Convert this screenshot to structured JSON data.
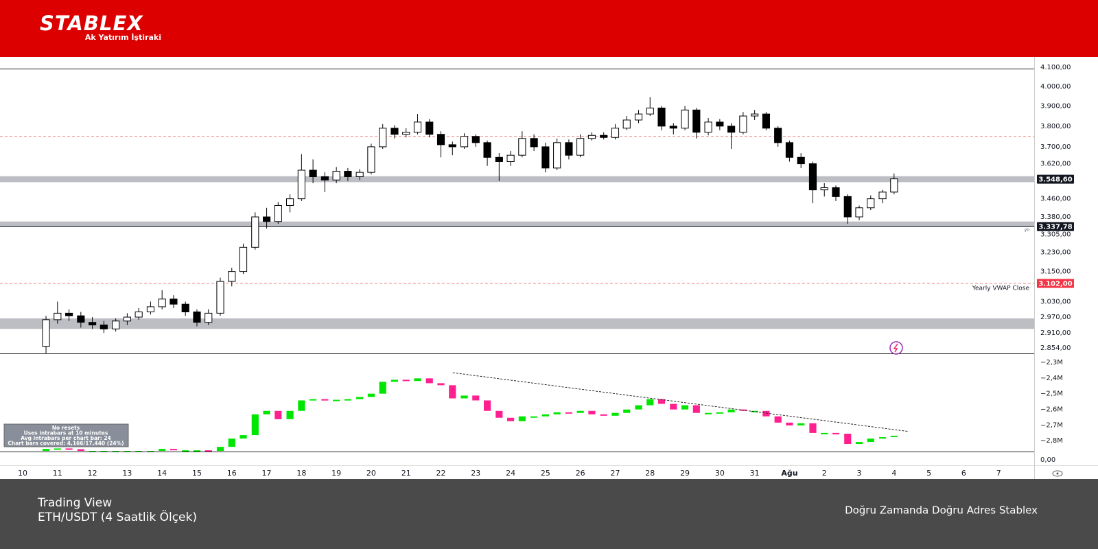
{
  "header": {
    "logo": "STABLEX",
    "tagline": "Ak Yatırım İştiraki"
  },
  "chart_data": {
    "type": "candlestick",
    "scale": "log",
    "x": [
      0.67,
      1,
      1.33,
      1.67,
      2,
      2.33,
      2.67,
      3,
      3.33,
      3.67,
      4,
      4.33,
      4.67,
      5,
      5.33,
      5.67,
      6,
      6.33,
      6.67,
      7,
      7.33,
      7.67,
      8,
      8.33,
      8.67,
      9,
      9.33,
      9.67,
      10,
      10.33,
      10.67,
      11,
      11.33,
      11.67,
      12,
      12.33,
      12.67,
      13,
      13.33,
      13.67,
      14,
      14.33,
      14.67,
      15,
      15.33,
      15.67,
      16,
      16.33,
      16.67,
      17,
      17.33,
      17.67,
      18,
      18.33,
      18.67,
      19,
      19.33,
      19.67,
      20,
      20.33,
      20.67,
      21,
      21.33,
      21.67,
      22,
      22.33,
      22.67,
      23,
      23.33,
      23.67,
      24,
      24.33,
      24.67,
      25
    ],
    "ohlc": [
      [
        2860,
        2975,
        2835,
        2960
      ],
      [
        2960,
        3030,
        2945,
        2985
      ],
      [
        2985,
        3000,
        2955,
        2975
      ],
      [
        2975,
        2990,
        2930,
        2950
      ],
      [
        2950,
        2970,
        2925,
        2940
      ],
      [
        2940,
        2955,
        2910,
        2925
      ],
      [
        2925,
        2965,
        2915,
        2955
      ],
      [
        2955,
        2985,
        2940,
        2970
      ],
      [
        2970,
        3005,
        2960,
        2990
      ],
      [
        2990,
        3030,
        2980,
        3010
      ],
      [
        3010,
        3075,
        3000,
        3040
      ],
      [
        3040,
        3055,
        3005,
        3020
      ],
      [
        3020,
        3030,
        2975,
        2990
      ],
      [
        2990,
        3000,
        2935,
        2950
      ],
      [
        2950,
        3000,
        2940,
        2985
      ],
      [
        2985,
        3125,
        2975,
        3110
      ],
      [
        3110,
        3165,
        3090,
        3150
      ],
      [
        3150,
        3265,
        3140,
        3250
      ],
      [
        3250,
        3400,
        3240,
        3380
      ],
      [
        3380,
        3420,
        3330,
        3360
      ],
      [
        3360,
        3445,
        3350,
        3430
      ],
      [
        3430,
        3480,
        3400,
        3460
      ],
      [
        3460,
        3665,
        3450,
        3590
      ],
      [
        3590,
        3640,
        3530,
        3560
      ],
      [
        3560,
        3580,
        3490,
        3545
      ],
      [
        3545,
        3605,
        3530,
        3585
      ],
      [
        3585,
        3600,
        3540,
        3560
      ],
      [
        3560,
        3595,
        3545,
        3580
      ],
      [
        3580,
        3715,
        3570,
        3700
      ],
      [
        3700,
        3810,
        3690,
        3790
      ],
      [
        3790,
        3805,
        3740,
        3760
      ],
      [
        3760,
        3790,
        3745,
        3770
      ],
      [
        3770,
        3860,
        3760,
        3820
      ],
      [
        3820,
        3835,
        3745,
        3760
      ],
      [
        3760,
        3775,
        3650,
        3710
      ],
      [
        3710,
        3725,
        3660,
        3700
      ],
      [
        3700,
        3765,
        3690,
        3750
      ],
      [
        3750,
        3760,
        3700,
        3720
      ],
      [
        3720,
        3730,
        3610,
        3650
      ],
      [
        3650,
        3670,
        3540,
        3630
      ],
      [
        3630,
        3680,
        3610,
        3660
      ],
      [
        3660,
        3775,
        3650,
        3740
      ],
      [
        3740,
        3760,
        3680,
        3700
      ],
      [
        3700,
        3720,
        3580,
        3600
      ],
      [
        3600,
        3740,
        3590,
        3720
      ],
      [
        3720,
        3735,
        3640,
        3660
      ],
      [
        3660,
        3760,
        3650,
        3740
      ],
      [
        3740,
        3770,
        3730,
        3755
      ],
      [
        3755,
        3770,
        3735,
        3745
      ],
      [
        3745,
        3810,
        3735,
        3790
      ],
      [
        3790,
        3850,
        3780,
        3830
      ],
      [
        3830,
        3880,
        3815,
        3860
      ],
      [
        3860,
        3945,
        3850,
        3890
      ],
      [
        3890,
        3900,
        3780,
        3800
      ],
      [
        3800,
        3815,
        3760,
        3790
      ],
      [
        3790,
        3900,
        3780,
        3880
      ],
      [
        3880,
        3890,
        3740,
        3770
      ],
      [
        3770,
        3840,
        3755,
        3820
      ],
      [
        3820,
        3835,
        3780,
        3800
      ],
      [
        3800,
        3815,
        3690,
        3770
      ],
      [
        3770,
        3870,
        3760,
        3850
      ],
      [
        3850,
        3880,
        3830,
        3860
      ],
      [
        3860,
        3870,
        3780,
        3790
      ],
      [
        3790,
        3800,
        3700,
        3720
      ],
      [
        3720,
        3730,
        3630,
        3650
      ],
      [
        3650,
        3670,
        3600,
        3620
      ],
      [
        3620,
        3630,
        3440,
        3500
      ],
      [
        3500,
        3530,
        3470,
        3510
      ],
      [
        3510,
        3520,
        3450,
        3470
      ],
      [
        3470,
        3480,
        3350,
        3380
      ],
      [
        3380,
        3430,
        3365,
        3420
      ],
      [
        3420,
        3475,
        3410,
        3460
      ],
      [
        3460,
        3500,
        3440,
        3490
      ],
      [
        3490,
        3575,
        3480,
        3550
      ]
    ],
    "up_color": "#ffffff",
    "down_color": "#000000",
    "xlim": [
      -0.65,
      29.02
    ],
    "xticks": [
      {
        "value": 0,
        "label": "10"
      },
      {
        "value": 1,
        "label": "11"
      },
      {
        "value": 2,
        "label": "12"
      },
      {
        "value": 3,
        "label": "13"
      },
      {
        "value": 4,
        "label": "14"
      },
      {
        "value": 5,
        "label": "15"
      },
      {
        "value": 6,
        "label": "16"
      },
      {
        "value": 7,
        "label": "17"
      },
      {
        "value": 8,
        "label": "18"
      },
      {
        "value": 9,
        "label": "19"
      },
      {
        "value": 10,
        "label": "20"
      },
      {
        "value": 11,
        "label": "21"
      },
      {
        "value": 12,
        "label": "22"
      },
      {
        "value": 13,
        "label": "23"
      },
      {
        "value": 14,
        "label": "24"
      },
      {
        "value": 15,
        "label": "25"
      },
      {
        "value": 16,
        "label": "26"
      },
      {
        "value": 17,
        "label": "27"
      },
      {
        "value": 18,
        "label": "28"
      },
      {
        "value": 19,
        "label": "29"
      },
      {
        "value": 20,
        "label": "30"
      },
      {
        "value": 21,
        "label": "31"
      },
      {
        "value": 22,
        "label": "Ağu"
      },
      {
        "value": 23,
        "label": "2"
      },
      {
        "value": 24,
        "label": "3"
      },
      {
        "value": 25,
        "label": "4"
      },
      {
        "value": 26,
        "label": "5"
      },
      {
        "value": 27,
        "label": "6"
      },
      {
        "value": 28,
        "label": "7"
      }
    ],
    "ylim": [
      2834,
      4100
    ],
    "yticks": [
      {
        "value": 4100,
        "label": "4.100,00"
      },
      {
        "value": 4000,
        "label": "4.000,00"
      },
      {
        "value": 3900,
        "label": "3.900,00"
      },
      {
        "value": 3800,
        "label": "3.800,00"
      },
      {
        "value": 3700,
        "label": "3.700,00"
      },
      {
        "value": 3620,
        "label": "3.620,00"
      },
      {
        "value": 3460,
        "label": "3.460,00"
      },
      {
        "value": 3380,
        "label": "3.380,00"
      },
      {
        "value": 3305,
        "label": "3.305,00"
      },
      {
        "value": 3230,
        "label": "3.230,00"
      },
      {
        "value": 3150,
        "label": "3.150,00"
      },
      {
        "value": 3030,
        "label": "3.030,00"
      },
      {
        "value": 2970,
        "label": "2.970,00"
      },
      {
        "value": 2910,
        "label": "2.910,00"
      },
      {
        "value": 2854,
        "label": "2.854,00"
      }
    ],
    "zones": [
      [
        3535,
        3562
      ],
      [
        3337,
        3360
      ],
      [
        2925,
        2965
      ]
    ],
    "levels": [
      {
        "value": 3750,
        "color": "#f08080"
      },
      {
        "value": 3102,
        "color": "#f08080"
      }
    ],
    "badges": [
      {
        "value": 3548.6,
        "label": "3.548,60",
        "color": "#131722",
        "line": false
      },
      {
        "value": 3337.78,
        "label": "3.337,78",
        "color": "#131722",
        "line": true
      },
      {
        "value": 3102,
        "label": "3.102,00",
        "color": "#f23645",
        "line": false
      }
    ],
    "vwap_label": "Yearly VWAP Close",
    "small_label": "yo",
    "indicator": {
      "type": "candlestick",
      "color_up": "#00e600",
      "color_down": "#ff1f8f",
      "values": [
        [
          -2.866,
          -2.853
        ],
        [
          -2.853,
          -2.85
        ],
        [
          -2.85,
          -2.855
        ],
        [
          -2.855,
          -2.866
        ],
        [
          -2.866,
          -2.866
        ],
        [
          -2.866,
          -2.866
        ],
        [
          -2.866,
          -2.866
        ],
        [
          -2.866,
          -2.866
        ],
        [
          -2.866,
          -2.866
        ],
        [
          -2.866,
          -2.866
        ],
        [
          -2.866,
          -2.853
        ],
        [
          -2.853,
          -2.862
        ],
        [
          -2.862,
          -2.862
        ],
        [
          -2.862,
          -2.862
        ],
        [
          -2.862,
          -2.866
        ],
        [
          -2.866,
          -2.84
        ],
        [
          -2.84,
          -2.787
        ],
        [
          -2.787,
          -2.765
        ],
        [
          -2.765,
          -2.632
        ],
        [
          -2.632,
          -2.61
        ],
        [
          -2.61,
          -2.663
        ],
        [
          -2.663,
          -2.61
        ],
        [
          -2.61,
          -2.543
        ],
        [
          -2.543,
          -2.535
        ],
        [
          -2.535,
          -2.543
        ],
        [
          -2.543,
          -2.539
        ],
        [
          -2.539,
          -2.535
        ],
        [
          -2.535,
          -2.521
        ],
        [
          -2.521,
          -2.5
        ],
        [
          -2.5,
          -2.424
        ],
        [
          -2.424,
          -2.411
        ],
        [
          -2.411,
          -2.419
        ],
        [
          -2.419,
          -2.402
        ],
        [
          -2.402,
          -2.433
        ],
        [
          -2.433,
          -2.446
        ],
        [
          -2.446,
          -2.53
        ],
        [
          -2.53,
          -2.512
        ],
        [
          -2.512,
          -2.543
        ],
        [
          -2.543,
          -2.61
        ],
        [
          -2.61,
          -2.654
        ],
        [
          -2.654,
          -2.676
        ],
        [
          -2.676,
          -2.645
        ],
        [
          -2.645,
          -2.645
        ],
        [
          -2.645,
          -2.632
        ],
        [
          -2.632,
          -2.619
        ],
        [
          -2.619,
          -2.623
        ],
        [
          -2.623,
          -2.61
        ],
        [
          -2.61,
          -2.632
        ],
        [
          -2.632,
          -2.641
        ],
        [
          -2.641,
          -2.623
        ],
        [
          -2.623,
          -2.601
        ],
        [
          -2.601,
          -2.574
        ],
        [
          -2.574,
          -2.535
        ],
        [
          -2.535,
          -2.565
        ],
        [
          -2.565,
          -2.601
        ],
        [
          -2.601,
          -2.574
        ],
        [
          -2.574,
          -2.623
        ],
        [
          -2.623,
          -2.623
        ],
        [
          -2.623,
          -2.619
        ],
        [
          -2.619,
          -2.601
        ],
        [
          -2.601,
          -2.61
        ],
        [
          -2.61,
          -2.61
        ],
        [
          -2.61,
          -2.645
        ],
        [
          -2.645,
          -2.685
        ],
        [
          -2.685,
          -2.703
        ],
        [
          -2.703,
          -2.689
        ],
        [
          -2.689,
          -2.751
        ],
        [
          -2.751,
          -2.751
        ],
        [
          -2.751,
          -2.756
        ],
        [
          -2.756,
          -2.822
        ],
        [
          -2.822,
          -2.809
        ],
        [
          -2.809,
          -2.787
        ],
        [
          -2.787,
          -2.778
        ],
        [
          -2.778,
          -2.769
        ]
      ],
      "ylim": [
        -2.87,
        -2.247
      ],
      "yticks": [
        {
          "value": -2.3,
          "label": "−2,3M"
        },
        {
          "value": -2.4,
          "label": "−2,4M"
        },
        {
          "value": -2.5,
          "label": "−2,5M"
        },
        {
          "value": -2.6,
          "label": "−2,6M"
        },
        {
          "value": -2.7,
          "label": "−2,7M"
        },
        {
          "value": -2.8,
          "label": "−2,8M"
        }
      ],
      "bottom_label": "0,00",
      "trend_line": {
        "x": [
          12.34,
          25.43
        ],
        "values": [
          -2.366,
          -2.742
        ]
      }
    }
  },
  "info_box": [
    "No resets",
    "Uses intrabars at 10 minutes",
    "Avg intrabars per chart bar: 24",
    "Chart bars covered: 4,166/17,440 (24%)"
  ],
  "footer": {
    "source": "Trading View",
    "pair": "ETH/USDT (4 Saatlik Ölçek)",
    "slogan": "Doğru Zamanda Doğru Adres Stablex"
  }
}
